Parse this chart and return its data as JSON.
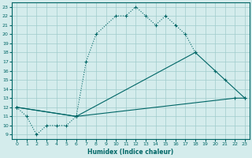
{
  "bg_color": "#d4ecec",
  "grid_color": "#a0cccc",
  "line_color": "#006666",
  "xlim": [
    -0.5,
    23.5
  ],
  "ylim": [
    8.5,
    23.5
  ],
  "xticks": [
    0,
    1,
    2,
    3,
    4,
    5,
    6,
    7,
    8,
    9,
    10,
    11,
    12,
    13,
    14,
    15,
    16,
    17,
    18,
    19,
    20,
    21,
    22,
    23
  ],
  "yticks": [
    9,
    10,
    11,
    12,
    13,
    14,
    15,
    16,
    17,
    18,
    19,
    20,
    21,
    22,
    23
  ],
  "xlabel": "Humidex (Indice chaleur)",
  "line1_x": [
    0,
    1,
    2,
    3,
    4,
    5,
    6,
    7,
    8,
    10,
    11,
    12,
    13,
    14,
    15,
    16,
    17,
    18
  ],
  "line1_y": [
    12,
    11,
    9,
    10,
    10,
    10,
    11,
    17,
    20,
    22,
    22,
    23,
    22,
    21,
    22,
    21,
    20,
    18
  ],
  "line1_style": "dotted",
  "line2_x": [
    0,
    6,
    18,
    20,
    21,
    23
  ],
  "line2_y": [
    12,
    11,
    18,
    16,
    15,
    13
  ],
  "line2_style": "solid",
  "line3_x": [
    0,
    6,
    22,
    23
  ],
  "line3_y": [
    12,
    11,
    13,
    13
  ],
  "line3_style": "solid"
}
